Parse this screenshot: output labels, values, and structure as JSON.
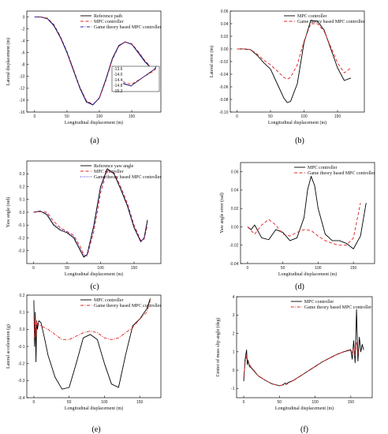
{
  "chart_data": [
    {
      "id": "a",
      "type": "line",
      "caption": "(a)",
      "xlabel": "Longitudinal displacement (m)",
      "ylabel": "Lateral displacement (m)",
      "xlim": [
        -12,
        195
      ],
      "ylim": [
        -16,
        1
      ],
      "xticks": [
        0,
        50,
        100,
        150
      ],
      "yticks": [
        0,
        -2,
        -4,
        -6,
        -8,
        -10,
        -12,
        -14,
        -16
      ],
      "legend_position": "top-right",
      "series": [
        {
          "name": "Reference path",
          "color": "#000000",
          "dash": "solid",
          "x": [
            0,
            10,
            20,
            30,
            40,
            50,
            60,
            70,
            80,
            90,
            100,
            110,
            120,
            130,
            140,
            150,
            160,
            170,
            180,
            190
          ],
          "y": [
            0,
            0,
            -0.3,
            -1.5,
            -3.5,
            -6,
            -9,
            -12,
            -14.3,
            -14.8,
            -13.6,
            -10.5,
            -7,
            -4.8,
            -4.2,
            -4.6,
            -6,
            -7.5,
            -8.6,
            -9.1
          ]
        },
        {
          "name": "MPC controller",
          "color": "#e02020",
          "dash": "dash",
          "x": [
            0,
            10,
            20,
            30,
            40,
            50,
            60,
            70,
            80,
            90,
            100,
            110,
            120,
            130,
            140,
            150,
            160,
            170,
            180,
            190
          ],
          "y": [
            0,
            0,
            -0.2,
            -1.3,
            -3.3,
            -5.8,
            -8.8,
            -11.8,
            -14.1,
            -14.7,
            -13.7,
            -10.7,
            -7.2,
            -4.9,
            -4.2,
            -4.5,
            -5.8,
            -7.3,
            -8.5,
            -9.0
          ]
        },
        {
          "name": "Game theory based MPC controller",
          "color": "#2020c0",
          "dash": "dashdot",
          "x": [
            0,
            10,
            20,
            30,
            40,
            50,
            60,
            70,
            80,
            90,
            100,
            110,
            120,
            130,
            140,
            150,
            160,
            170,
            180,
            190
          ],
          "y": [
            0,
            0,
            -0.3,
            -1.4,
            -3.4,
            -5.9,
            -8.9,
            -11.9,
            -14.2,
            -14.8,
            -13.6,
            -10.6,
            -7.1,
            -4.9,
            -4.2,
            -4.6,
            -5.9,
            -7.4,
            -8.6,
            -9.1
          ]
        }
      ],
      "inset": {
        "xlim": [
          82,
          102
        ],
        "ylim": [
          -15.2,
          -13.4
        ],
        "yticks": [
          -13.6,
          -14.0,
          -14.4,
          -14.8,
          -15.2
        ],
        "tick_labels": [
          "-13.6",
          "-14.0",
          "-14.4",
          "-14.8",
          "-15.2"
        ]
      }
    },
    {
      "id": "b",
      "type": "line",
      "caption": "(b)",
      "xlabel": "Longitudinal displacement (m)",
      "ylabel": "Lateral error (m)",
      "xlim": [
        -10,
        190
      ],
      "ylim": [
        -0.1,
        0.06
      ],
      "xticks": [
        0,
        50,
        100,
        150
      ],
      "yticks": [
        0.06,
        0.04,
        0.02,
        0.0,
        -0.02,
        -0.04,
        -0.06,
        -0.08,
        -0.1
      ],
      "tick_labels_y": [
        "0.06",
        "0.04",
        "0.02",
        "0.00",
        "-0.02",
        "-0.04",
        "-0.06",
        "-0.08",
        "-0.10"
      ],
      "legend_position": "top-right",
      "series": [
        {
          "name": "MPC controller",
          "color": "#000000",
          "dash": "solid",
          "x": [
            0,
            10,
            20,
            30,
            40,
            50,
            60,
            70,
            75,
            80,
            90,
            100,
            110,
            120,
            130,
            140,
            150,
            160,
            170
          ],
          "y": [
            0,
            0,
            -0.001,
            -0.01,
            -0.022,
            -0.032,
            -0.055,
            -0.078,
            -0.085,
            -0.083,
            -0.055,
            0.01,
            0.045,
            0.044,
            0.03,
            0.0,
            -0.03,
            -0.05,
            -0.046
          ]
        },
        {
          "name": "Game theory based MPC controller",
          "color": "#e02020",
          "dash": "dash",
          "x": [
            0,
            10,
            20,
            30,
            40,
            50,
            60,
            70,
            75,
            80,
            90,
            100,
            110,
            120,
            130,
            140,
            150,
            160,
            170
          ],
          "y": [
            0,
            0,
            -0.001,
            -0.008,
            -0.018,
            -0.025,
            -0.035,
            -0.045,
            -0.048,
            -0.045,
            -0.025,
            0.012,
            0.04,
            0.04,
            0.028,
            0.003,
            -0.022,
            -0.038,
            -0.03
          ]
        }
      ]
    },
    {
      "id": "c",
      "type": "line",
      "caption": "(c)",
      "xlabel": "Longitudinal displacement (m)",
      "ylabel": "Yaw angle (rad)",
      "xlim": [
        -10,
        190
      ],
      "ylim": [
        -0.4,
        0.4
      ],
      "xticks": [
        0,
        50,
        100,
        150
      ],
      "yticks": [
        0.3,
        0.2,
        0.1,
        0.0,
        -0.1,
        -0.2,
        -0.3
      ],
      "tick_labels_y": [
        "0.3",
        "0.2",
        "0.1",
        "0.0",
        "-0.1",
        "-0.2",
        "-0.3"
      ],
      "legend_position": "top-right",
      "series": [
        {
          "name": "Reference yaw angle",
          "color": "#000000",
          "dash": "solid",
          "x": [
            0,
            10,
            20,
            30,
            40,
            50,
            60,
            70,
            75,
            80,
            90,
            100,
            110,
            120,
            130,
            140,
            150,
            160,
            165,
            170
          ],
          "y": [
            0,
            0.01,
            -0.02,
            -0.1,
            -0.14,
            -0.16,
            -0.2,
            -0.3,
            -0.35,
            -0.33,
            -0.1,
            0.2,
            0.34,
            0.3,
            0.18,
            0.05,
            -0.12,
            -0.23,
            -0.2,
            -0.06
          ]
        },
        {
          "name": "MPC controller",
          "color": "#e02020",
          "dash": "dash",
          "x": [
            0,
            10,
            20,
            30,
            40,
            50,
            60,
            70,
            75,
            80,
            90,
            100,
            110,
            120,
            130,
            140,
            150,
            160,
            165,
            170
          ],
          "y": [
            0,
            0.005,
            0,
            -0.07,
            -0.12,
            -0.15,
            -0.18,
            -0.27,
            -0.33,
            -0.34,
            -0.15,
            0.15,
            0.33,
            0.31,
            0.2,
            0.07,
            -0.1,
            -0.22,
            -0.21,
            -0.1
          ]
        },
        {
          "name": "Game theory based MPC controller",
          "color": "#2020c0",
          "dash": "dot",
          "x": [
            0,
            10,
            20,
            30,
            40,
            50,
            60,
            70,
            75,
            80,
            90,
            100,
            110,
            120,
            130,
            140,
            150,
            160,
            165,
            170
          ],
          "y": [
            0,
            0.008,
            -0.01,
            -0.09,
            -0.13,
            -0.155,
            -0.19,
            -0.29,
            -0.34,
            -0.335,
            -0.12,
            0.18,
            0.335,
            0.305,
            0.19,
            0.06,
            -0.11,
            -0.225,
            -0.205,
            -0.08
          ]
        }
      ]
    },
    {
      "id": "d",
      "type": "line",
      "caption": "(d)",
      "xlabel": "Longitudinal displacement (m)",
      "ylabel": "Yaw angle error (rad)",
      "xlim": [
        -10,
        180
      ],
      "ylim": [
        -0.04,
        0.07
      ],
      "xticks": [
        0,
        50,
        100,
        150
      ],
      "yticks": [
        0.06,
        0.04,
        0.02,
        0.0,
        -0.02,
        -0.04
      ],
      "tick_labels_y": [
        "0.06",
        "0.04",
        "0.02",
        "0.00",
        "-0.02",
        "-0.04"
      ],
      "legend_position": "top-right",
      "series": [
        {
          "name": "MPC controller",
          "color": "#000000",
          "dash": "solid",
          "x": [
            0,
            5,
            10,
            20,
            30,
            40,
            50,
            60,
            70,
            80,
            85,
            90,
            95,
            100,
            110,
            120,
            130,
            140,
            150,
            160,
            168
          ],
          "y": [
            0,
            -0.003,
            0.002,
            -0.012,
            -0.014,
            -0.003,
            -0.006,
            -0.015,
            -0.012,
            0.01,
            0.04,
            0.055,
            0.045,
            0.02,
            -0.008,
            -0.015,
            -0.015,
            -0.018,
            -0.024,
            -0.01,
            0.026
          ]
        },
        {
          "name": "Game theory based MPC controller",
          "color": "#e02020",
          "dash": "dash",
          "x": [
            0,
            10,
            20,
            30,
            40,
            50,
            60,
            70,
            80,
            90,
            100,
            110,
            120,
            130,
            140,
            150,
            160
          ],
          "y": [
            0,
            -0.008,
            0.002,
            0.008,
            0.002,
            -0.008,
            -0.01,
            -0.006,
            -0.003,
            -0.004,
            -0.01,
            -0.015,
            -0.018,
            -0.02,
            -0.02,
            -0.012,
            0.026
          ]
        }
      ]
    },
    {
      "id": "e",
      "type": "line",
      "caption": "(e)",
      "xlabel": "Longitudinal displacement (m)",
      "ylabel": "Lateral acceleration (g)",
      "xlim": [
        -10,
        180
      ],
      "ylim": [
        -0.4,
        0.2
      ],
      "xticks": [
        0,
        50,
        100,
        150
      ],
      "yticks": [
        0.2,
        0.1,
        0.0,
        -0.1,
        -0.2,
        -0.3,
        -0.4
      ],
      "tick_labels_y": [
        "0.2",
        "0.1",
        "0.0",
        "-0.1",
        "-0.2",
        "-0.3",
        "-0.4"
      ],
      "legend_position": "top-right",
      "series": [
        {
          "name": "MPC controller",
          "color": "#000000",
          "dash": "solid",
          "x": [
            0,
            1,
            2,
            3,
            4,
            5,
            7,
            10,
            15,
            20,
            30,
            40,
            50,
            60,
            70,
            80,
            90,
            100,
            110,
            120,
            130,
            140,
            150,
            160,
            165
          ],
          "y": [
            0.17,
            -0.1,
            0.1,
            -0.19,
            0.05,
            0.0,
            0.05,
            0.04,
            -0.05,
            -0.15,
            -0.28,
            -0.35,
            -0.34,
            -0.2,
            -0.05,
            -0.03,
            -0.06,
            -0.2,
            -0.32,
            -0.34,
            -0.15,
            0.02,
            0.06,
            0.12,
            0.18
          ]
        },
        {
          "name": "Game theory based MPC controller",
          "color": "#e02020",
          "dash": "dashdot",
          "x": [
            0,
            1,
            2,
            3,
            4,
            5,
            10,
            20,
            30,
            40,
            50,
            60,
            70,
            80,
            90,
            100,
            110,
            120,
            130,
            140,
            150,
            160,
            165
          ],
          "y": [
            0.08,
            -0.05,
            0.06,
            -0.04,
            0.05,
            0.03,
            0.02,
            0.0,
            -0.03,
            -0.06,
            -0.06,
            -0.04,
            -0.02,
            -0.01,
            -0.02,
            -0.05,
            -0.06,
            -0.05,
            -0.02,
            0.01,
            0.06,
            0.1,
            0.17
          ]
        }
      ]
    },
    {
      "id": "f",
      "type": "line",
      "caption": "(f)",
      "xlabel": "Longitudinal displacement (m)",
      "ylabel": "Center of mass slip angle (deg)",
      "xlim": [
        -10,
        180
      ],
      "ylim": [
        -1.5,
        4
      ],
      "xticks": [
        0,
        50,
        100,
        150
      ],
      "yticks": [
        4,
        3,
        2,
        1,
        0,
        -1
      ],
      "tick_labels_y": [
        "4",
        "3",
        "2",
        "1",
        "0",
        "-1"
      ],
      "legend_position": "top-right",
      "series": [
        {
          "name": "MPC controller",
          "color": "#000000",
          "dash": "solid",
          "x": [
            0,
            2,
            4,
            5,
            6,
            8,
            10,
            20,
            30,
            40,
            50,
            55,
            58,
            60,
            62,
            70,
            80,
            90,
            100,
            110,
            120,
            130,
            140,
            150,
            152,
            154,
            156,
            158,
            160,
            162,
            164,
            166,
            168
          ],
          "y": [
            -0.6,
            0.6,
            1.1,
            0.3,
            0.55,
            0.2,
            0.15,
            -0.3,
            -0.55,
            -0.75,
            -0.85,
            -0.8,
            -0.7,
            -0.75,
            -0.68,
            -0.55,
            -0.3,
            -0.05,
            0.2,
            0.45,
            0.65,
            0.85,
            1.0,
            1.1,
            0.6,
            1.6,
            0.4,
            3.3,
            0.5,
            1.8,
            1.0,
            1.4,
            1.1
          ]
        },
        {
          "name": "Game theory based MPC controller",
          "color": "#e02020",
          "dash": "dashdot",
          "x": [
            0,
            2,
            4,
            6,
            10,
            20,
            30,
            40,
            50,
            60,
            70,
            80,
            90,
            100,
            110,
            120,
            130,
            140,
            150,
            152,
            154,
            156,
            158,
            160,
            162
          ],
          "y": [
            -0.4,
            0.4,
            0.8,
            0.4,
            0.2,
            -0.3,
            -0.55,
            -0.75,
            -0.85,
            -0.77,
            -0.55,
            -0.3,
            -0.05,
            0.2,
            0.45,
            0.65,
            0.85,
            1.0,
            1.15,
            0.9,
            1.3,
            0.8,
            1.5,
            0.9,
            1.2
          ]
        }
      ]
    }
  ]
}
